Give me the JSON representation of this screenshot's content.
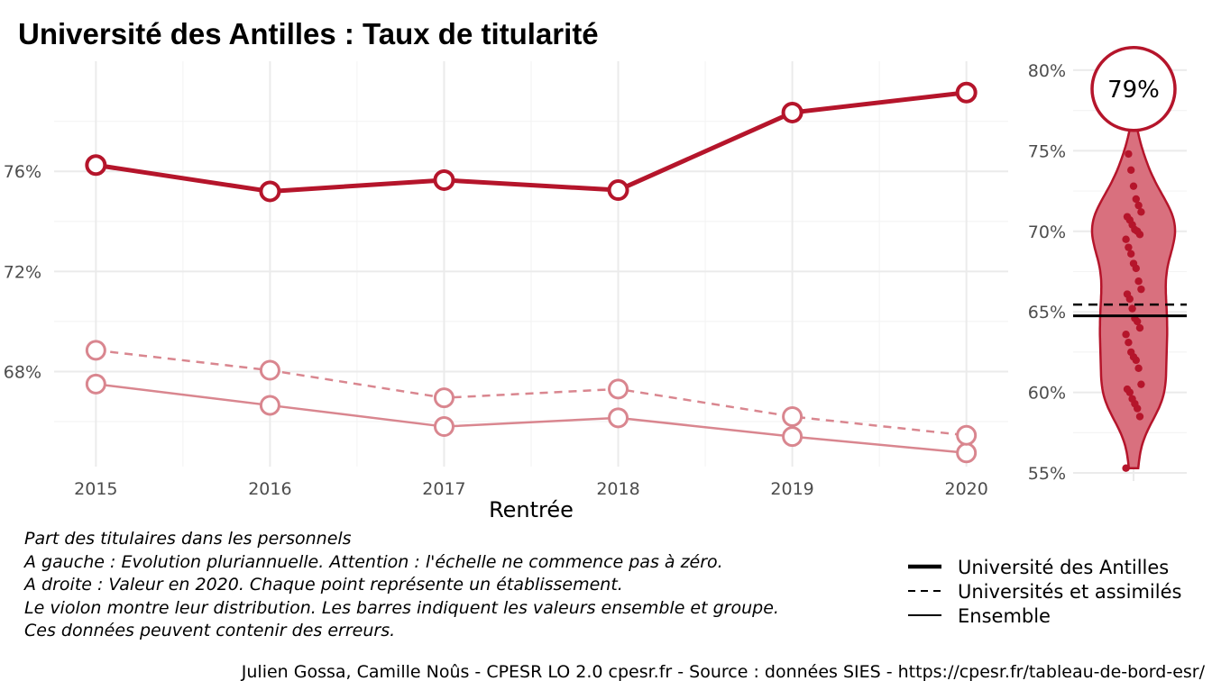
{
  "chart_data": [
    {
      "type": "line",
      "title": "Université des Antilles  :  Taux de titularité",
      "xlabel": "Rentrée",
      "ylabel": "",
      "x": [
        2015,
        2016,
        2017,
        2018,
        2019,
        2020
      ],
      "x_tick_labels": [
        "2015",
        "2016",
        "2017",
        "2018",
        "2019",
        "2020"
      ],
      "y_tick_values": [
        68,
        72,
        76
      ],
      "y_tick_labels": [
        "68%",
        "72%",
        "76%"
      ],
      "ylim": [
        64.2,
        80.4
      ],
      "grid": true,
      "series": [
        {
          "name": "Université des Antilles",
          "style": "solid-thick",
          "color": "#b5152b",
          "values": [
            76.25,
            75.2,
            75.65,
            75.25,
            78.35,
            79.15
          ]
        },
        {
          "name": "Universités et assimilés",
          "style": "dashed",
          "color": "#d9868f",
          "values": [
            68.85,
            68.05,
            66.95,
            67.3,
            66.2,
            65.45
          ]
        },
        {
          "name": "Ensemble",
          "style": "solid-thin",
          "color": "#d9868f",
          "values": [
            67.5,
            66.65,
            65.8,
            66.15,
            65.4,
            64.75
          ]
        }
      ]
    },
    {
      "type": "violin",
      "ylim": [
        54.5,
        81
      ],
      "y_tick_values": [
        55,
        60,
        65,
        70,
        75,
        80
      ],
      "y_tick_labels": [
        "55%",
        "60%",
        "65%",
        "70%",
        "75%",
        "80%"
      ],
      "highlight_value": 79,
      "highlight_label": "79%",
      "reference_lines": [
        {
          "name": "Universités et assimilés",
          "style": "dashed",
          "value": 65.45
        },
        {
          "name": "Ensemble",
          "style": "solid",
          "value": 64.75
        }
      ],
      "points": [
        55.3,
        58.5,
        59.0,
        59.3,
        59.6,
        60.0,
        60.2,
        60.5,
        61.5,
        62.0,
        62.2,
        62.5,
        63.1,
        63.6,
        64.0,
        64.4,
        64.6,
        65.2,
        65.8,
        66.1,
        66.4,
        66.9,
        67.7,
        68.0,
        68.6,
        69.0,
        69.5,
        69.8,
        70.0,
        70.1,
        70.4,
        70.7,
        70.9,
        71.2,
        71.6,
        72.0,
        72.8,
        73.8,
        74.8
      ]
    }
  ],
  "caption_lines": [
    "Part des titulaires dans les personnels",
    "A gauche : Evolution pluriannuelle. Attention : l'échelle ne commence pas à zéro.",
    "A droite : Valeur en 2020. Chaque point représente un établissement.",
    "Le violon montre leur distribution. Les barres indiquent les valeurs ensemble et groupe.",
    "Ces données peuvent contenir des erreurs."
  ],
  "legend": [
    {
      "label": "Université des Antilles",
      "style": "thick"
    },
    {
      "label": "Universités et assimilés",
      "style": "dashed"
    },
    {
      "label": "Ensemble",
      "style": "thin"
    }
  ],
  "credit": "Julien Gossa, Camille Noûs - CPESR LO 2.0 cpesr.fr - Source : données SIES - https://cpesr.fr/tableau-de-bord-esr/",
  "colors": {
    "accent": "#b5152b",
    "faded": "#d9868f",
    "violin_fill": "#d9707e",
    "grid_major": "#ebebeb",
    "grid_minor": "#f4f4f4"
  }
}
